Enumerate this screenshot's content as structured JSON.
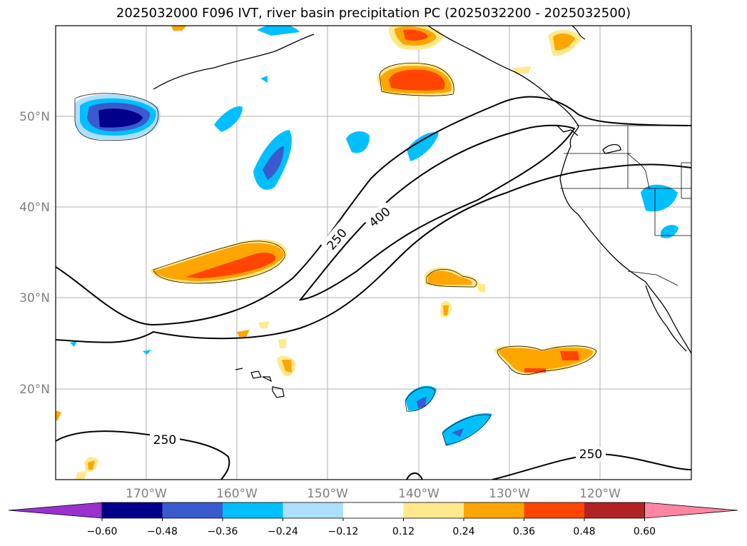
{
  "title": "2025032000 F096 IVT, river basin precipitation PC (2025032200 - 2025032500)",
  "lat_labels": [
    "50°N",
    "40°N",
    "30°N",
    "20°N"
  ],
  "lon_labels": [
    "170°W",
    "160°W",
    "150°W",
    "140°W",
    "130°W",
    "120°W"
  ],
  "contour_labels": [
    "250",
    "400",
    "250",
    "250"
  ],
  "colorbar": {
    "ticks": [
      "−0.60",
      "−0.48",
      "−0.36",
      "−0.24",
      "−0.12",
      "0.12",
      "0.24",
      "0.36",
      "0.48",
      "0.60"
    ],
    "colors": [
      "#9932cc",
      "#00008b",
      "#3a5bcf",
      "#00bfff",
      "#addfff",
      "#ffffff",
      "#ffe98a",
      "#ffa500",
      "#ff4500",
      "#b22222",
      "#ff85a2"
    ]
  },
  "map": {
    "lon_range": [
      -180,
      -110
    ],
    "lat_range": [
      10,
      60
    ],
    "ivt_contour_levels": [
      250,
      400
    ]
  }
}
